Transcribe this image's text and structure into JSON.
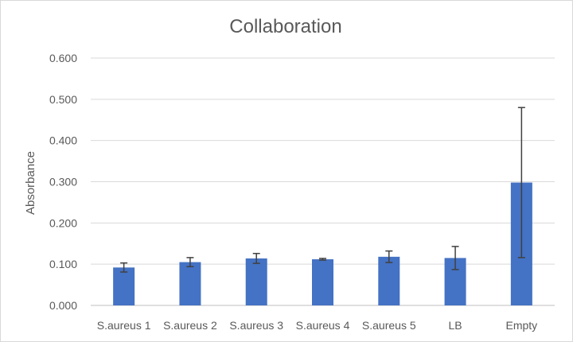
{
  "chart_data": {
    "type": "bar",
    "title": "Collaboration",
    "xlabel": "",
    "ylabel": "Absorbance",
    "ylim": [
      0,
      0.6
    ],
    "yticks": [
      "0.000",
      "0.100",
      "0.200",
      "0.300",
      "0.400",
      "0.500",
      "0.600"
    ],
    "grid": true,
    "legend": "none",
    "bar_color": "#4472c4",
    "categories": [
      "S.aureus 1",
      "S.aureus 2",
      "S.aureus 3",
      "S.aureus 4",
      "S.aureus 5",
      "LB",
      "Empty"
    ],
    "values": [
      0.092,
      0.105,
      0.114,
      0.112,
      0.118,
      0.115,
      0.298
    ],
    "errors": [
      0.011,
      0.011,
      0.012,
      0.002,
      0.014,
      0.028,
      0.182
    ]
  }
}
